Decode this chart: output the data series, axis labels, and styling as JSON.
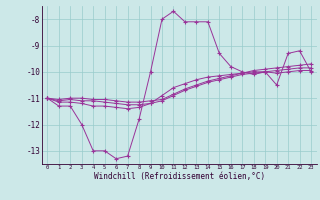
{
  "x": [
    0,
    1,
    2,
    3,
    4,
    5,
    6,
    7,
    8,
    9,
    10,
    11,
    12,
    13,
    14,
    15,
    16,
    17,
    18,
    19,
    20,
    21,
    22,
    23
  ],
  "line1": [
    -11.0,
    -11.3,
    -11.3,
    -12.0,
    -13.0,
    -13.0,
    -13.3,
    -13.2,
    -11.8,
    -10.0,
    -8.0,
    -7.7,
    -8.1,
    -8.1,
    -8.1,
    -9.3,
    -9.8,
    -10.0,
    -10.1,
    -10.0,
    -10.5,
    -9.3,
    -9.2,
    -10.0
  ],
  "line2": [
    -11.0,
    -11.15,
    -11.15,
    -11.2,
    -11.3,
    -11.3,
    -11.35,
    -11.4,
    -11.35,
    -11.2,
    -10.9,
    -10.6,
    -10.45,
    -10.3,
    -10.2,
    -10.15,
    -10.1,
    -10.05,
    -10.0,
    -10.0,
    -10.05,
    -10.0,
    -9.95,
    -9.95
  ],
  "line3": [
    -11.0,
    -11.1,
    -11.05,
    -11.1,
    -11.1,
    -11.15,
    -11.2,
    -11.25,
    -11.25,
    -11.2,
    -11.1,
    -10.9,
    -10.7,
    -10.55,
    -10.4,
    -10.3,
    -10.2,
    -10.1,
    -10.05,
    -10.0,
    -9.95,
    -9.9,
    -9.85,
    -9.85
  ],
  "line4": [
    -11.0,
    -11.05,
    -11.0,
    -11.0,
    -11.05,
    -11.05,
    -11.1,
    -11.15,
    -11.15,
    -11.1,
    -11.05,
    -10.85,
    -10.65,
    -10.5,
    -10.35,
    -10.25,
    -10.15,
    -10.05,
    -9.95,
    -9.9,
    -9.85,
    -9.8,
    -9.75,
    -9.7
  ],
  "line_color": "#993399",
  "bg_color": "#cce8e8",
  "grid_color": "#99cccc",
  "xlabel": "Windchill (Refroidissement éolien,°C)",
  "ylim": [
    -13.5,
    -7.5
  ],
  "xlim": [
    -0.5,
    23.5
  ],
  "yticks": [
    -8,
    -9,
    -10,
    -11,
    -12,
    -13
  ],
  "xticks": [
    0,
    1,
    2,
    3,
    4,
    5,
    6,
    7,
    8,
    9,
    10,
    11,
    12,
    13,
    14,
    15,
    16,
    17,
    18,
    19,
    20,
    21,
    22,
    23
  ]
}
